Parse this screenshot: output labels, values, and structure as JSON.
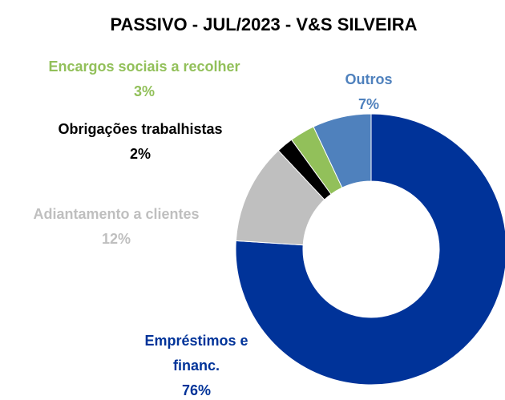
{
  "chart_data": {
    "type": "donut",
    "title": "PASSIVO - JUL/2023 - V&S SILVEIRA",
    "categories": [
      "Empréstimos e financ.",
      "Adiantamento a clientes",
      "Obrigações trabalhistas",
      "Encargos sociais a recolher",
      "Outros"
    ],
    "values": [
      76,
      12,
      2,
      3,
      7
    ],
    "value_labels": [
      "76%",
      "12%",
      "2%",
      "3%",
      "7%"
    ],
    "colors": [
      "#003399",
      "#bfbfbf",
      "#000000",
      "#92c05a",
      "#4f81bd"
    ]
  }
}
